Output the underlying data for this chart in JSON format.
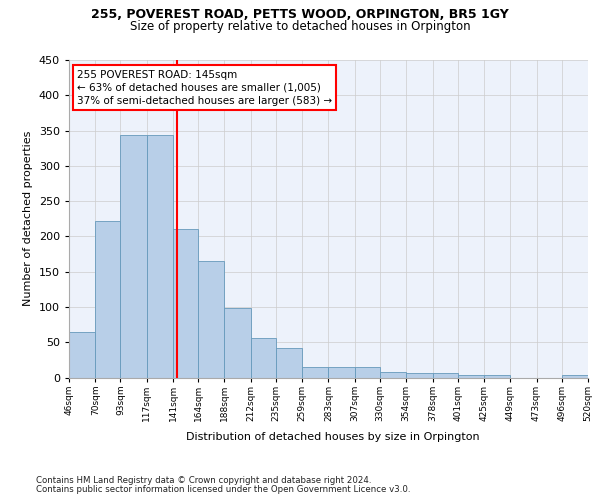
{
  "title1": "255, POVEREST ROAD, PETTS WOOD, ORPINGTON, BR5 1GY",
  "title2": "Size of property relative to detached houses in Orpington",
  "xlabel": "Distribution of detached houses by size in Orpington",
  "ylabel": "Number of detached properties",
  "annotation_line1": "255 POVEREST ROAD: 145sqm",
  "annotation_line2": "← 63% of detached houses are smaller (1,005)",
  "annotation_line3": "37% of semi-detached houses are larger (583) →",
  "footer1": "Contains HM Land Registry data © Crown copyright and database right 2024.",
  "footer2": "Contains public sector information licensed under the Open Government Licence v3.0.",
  "bar_edges": [
    46,
    70,
    93,
    117,
    141,
    164,
    188,
    212,
    235,
    259,
    283,
    307,
    330,
    354,
    378,
    401,
    425,
    449,
    473,
    496,
    520
  ],
  "bar_heights": [
    65,
    222,
    344,
    344,
    210,
    165,
    98,
    56,
    42,
    15,
    15,
    15,
    8,
    7,
    7,
    4,
    4,
    0,
    0,
    4
  ],
  "bar_color": "#b8cfe8",
  "bar_edge_color": "#6699bb",
  "grid_color": "#cccccc",
  "vline_x": 145,
  "vline_color": "red",
  "ylim": [
    0,
    450
  ],
  "xlim": [
    46,
    520
  ],
  "tick_labels": [
    "46sqm",
    "70sqm",
    "93sqm",
    "117sqm",
    "141sqm",
    "164sqm",
    "188sqm",
    "212sqm",
    "235sqm",
    "259sqm",
    "283sqm",
    "307sqm",
    "330sqm",
    "354sqm",
    "378sqm",
    "401sqm",
    "425sqm",
    "449sqm",
    "473sqm",
    "496sqm",
    "520sqm"
  ],
  "background_color": "#edf2fb",
  "fig_bg": "#ffffff",
  "title1_fontsize": 9,
  "title2_fontsize": 8.5,
  "ylabel_fontsize": 8,
  "xlabel_fontsize": 8,
  "tick_fontsize": 6.5,
  "footer_fontsize": 6.2,
  "annot_fontsize": 7.5
}
